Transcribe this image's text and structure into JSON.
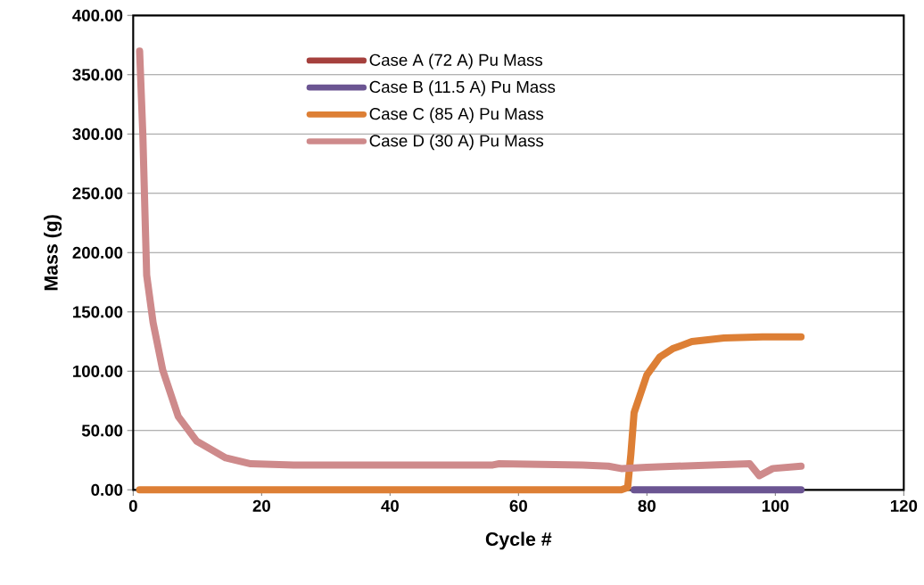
{
  "chart_data": {
    "type": "line",
    "xlabel": "Cycle #",
    "ylabel": "Mass (g)",
    "xlim": [
      0,
      120
    ],
    "xticks": [
      0,
      20,
      40,
      60,
      80,
      100,
      120
    ],
    "ylim": [
      0,
      400
    ],
    "yticks": [
      {
        "value": 0,
        "label": "0.00"
      },
      {
        "value": 50,
        "label": "50.00"
      },
      {
        "value": 100,
        "label": "100.00"
      },
      {
        "value": 150,
        "label": "150.00"
      },
      {
        "value": 200,
        "label": "200.00"
      },
      {
        "value": 250,
        "label": "250.00"
      },
      {
        "value": 300,
        "label": "300.00"
      },
      {
        "value": 350,
        "label": "350.00"
      },
      {
        "value": 400,
        "label": "400.00"
      }
    ],
    "grid": "y",
    "legend": "top",
    "marker": "none",
    "line_style": "solid",
    "series": [
      {
        "name": "Case A (72 A) Pu Mass",
        "color": "#a5403d",
        "values": [
          null,
          null
        ]
      },
      {
        "name": "Case B (11.5 A) Pu Mass",
        "color": "#6b5592",
        "x": [
          78,
          104
        ],
        "values": [
          0,
          0
        ]
      },
      {
        "name": "Case C (85 A) Pu Mass",
        "color": "#dd7f35",
        "x": [
          1,
          76,
          77,
          77.5,
          78,
          80,
          82,
          84,
          87,
          92,
          98,
          104
        ],
        "values": [
          0,
          0,
          2,
          30,
          65,
          97,
          112,
          119,
          125,
          128,
          129,
          129
        ]
      },
      {
        "name": "Case D (30 A) Pu Mass",
        "color": "#ce8a8b",
        "x": [
          1,
          1.5,
          1.9,
          2.1,
          3.1,
          4.6,
          7,
          9.9,
          14.4,
          18.3,
          25,
          40,
          56,
          57,
          70,
          74,
          76,
          80,
          90,
          96,
          97.5,
          99.6,
          104
        ],
        "values": [
          370,
          300,
          220,
          181,
          141,
          101,
          62,
          41,
          27,
          22,
          21,
          21,
          21,
          22,
          21,
          20,
          18,
          19,
          21,
          22,
          12,
          18,
          20
        ]
      }
    ]
  }
}
